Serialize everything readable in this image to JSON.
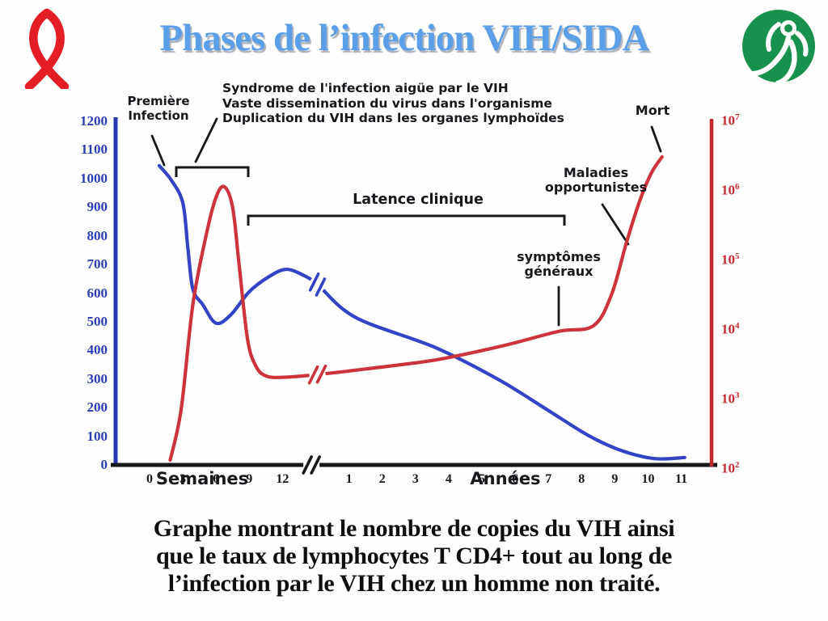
{
  "header": {
    "title": "Phases de l’infection VIH/SIDA",
    "title_color": "#5b9fe8",
    "ribbon_icon": "red-awareness-ribbon",
    "logo_icon": "green-person-logo"
  },
  "annotations": {
    "premiere": [
      "Première",
      "Infection"
    ],
    "syndrome": [
      "Syndrome de l'infection aigüe par le VIH",
      "Vaste dissemination du virus dans l'organisme",
      "Duplication du VIH dans les organes lymphoïdes"
    ],
    "latence": "Latence clinique",
    "maladies": [
      "Maladies",
      "opportunistes"
    ],
    "symptomes": [
      "symptômes",
      "généraux"
    ],
    "mort": "Mort"
  },
  "caption": {
    "lines": [
      "Graphe montrant le nombre de copies du VIH ainsi",
      "que le taux de lymphocytes T CD4+ tout au long de",
      "l’infection par le VIH chez un homme non traité."
    ]
  },
  "chart_data": {
    "type": "line",
    "title": "Phases de l'infection VIH/SIDA",
    "x_axis": {
      "week_ticks": [
        "0",
        "3",
        "6",
        "9",
        "12"
      ],
      "week_label": "Semaines",
      "year_ticks": [
        "1",
        "2",
        "3",
        "4",
        "5",
        "6",
        "7",
        "8",
        "9",
        "10",
        "11"
      ],
      "year_label": "Années",
      "break_symbol": "//",
      "t_scale_note": "t units: 0-4 = semaines 0,3,6,9,12 ; 5 = coupure d'échelle ; 6-16 = années 1-11"
    },
    "left_axis": {
      "ticks": [
        "1200",
        "1100",
        "1000",
        "900",
        "800",
        "700",
        "600",
        "500",
        "400",
        "300",
        "200",
        "100",
        "0"
      ],
      "range": [
        0,
        1200
      ],
      "scale": "linear",
      "color": "#2c3eb5",
      "axis_color": "#2737b4"
    },
    "right_axis": {
      "base": "10",
      "exponents": [
        "7",
        "6",
        "5",
        "4",
        "3",
        "2"
      ],
      "range": [
        100,
        10000000
      ],
      "scale": "log",
      "color": "#c62a33",
      "axis_color": "#c1272d"
    },
    "series": [
      {
        "name": "Taux de lymphocytes T CD4+",
        "axis": "left",
        "color": "#3343c6",
        "points": [
          [
            0.29,
            1045
          ],
          [
            0.65,
            995
          ],
          [
            1.0,
            915
          ],
          [
            1.15,
            760
          ],
          [
            1.3,
            615
          ],
          [
            1.6,
            560
          ],
          [
            2.0,
            495
          ],
          [
            2.45,
            525
          ],
          [
            3.0,
            605
          ],
          [
            3.6,
            658
          ],
          [
            4.1,
            683
          ],
          [
            4.6,
            664
          ],
          [
            5.05,
            630
          ],
          [
            6.2,
            515
          ],
          [
            8.6,
            410
          ],
          [
            10.5,
            298
          ],
          [
            12.0,
            190
          ],
          [
            13.2,
            103
          ],
          [
            14.2,
            50
          ],
          [
            15.2,
            22
          ],
          [
            16.1,
            26
          ]
        ]
      },
      {
        "name": "Nombre de copies du VIH (log10)",
        "axis": "right",
        "color": "#cc333a",
        "points": [
          [
            0.62,
            2.07
          ],
          [
            0.95,
            2.8
          ],
          [
            1.3,
            4.3
          ],
          [
            1.7,
            5.3
          ],
          [
            2.0,
            5.85
          ],
          [
            2.25,
            6.0
          ],
          [
            2.5,
            5.7
          ],
          [
            2.7,
            4.85
          ],
          [
            2.95,
            3.8
          ],
          [
            3.2,
            3.42
          ],
          [
            3.5,
            3.28
          ],
          [
            4.0,
            3.26
          ],
          [
            5.05,
            3.3
          ],
          [
            6.5,
            3.38
          ],
          [
            8.6,
            3.51
          ],
          [
            10.6,
            3.71
          ],
          [
            12.3,
            3.92
          ],
          [
            13.35,
            4.0
          ],
          [
            13.9,
            4.45
          ],
          [
            14.35,
            5.2
          ],
          [
            14.75,
            5.8
          ],
          [
            15.1,
            6.2
          ],
          [
            15.42,
            6.43
          ]
        ]
      }
    ],
    "breaks": [
      {
        "on": "x-axis",
        "t": 4.87
      },
      {
        "on": "cd4-curve",
        "t": 5.05
      },
      {
        "on": "viral-curve",
        "t": 5.05
      }
    ],
    "legend_position": "none",
    "grid": false
  }
}
